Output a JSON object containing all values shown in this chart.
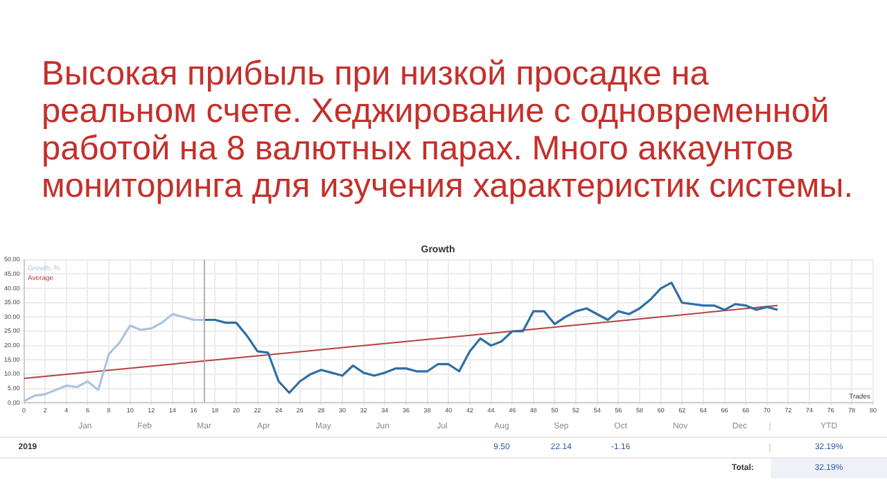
{
  "chart_data": [
    {
      "type": "line",
      "title": "Высокая прибыль при низкой просадке на реальном счете. Хеджирование с одновременной работой на 8 валютных парах. Много аккаунтов мониторинга для изучения характеристик системы.",
      "subtitle": "Growth",
      "xlabel": "Trades",
      "series": [
        {
          "name": "Growth, %",
          "color": "#a9c4e0",
          "x": [
            0,
            1,
            2,
            3,
            4,
            5,
            6,
            7,
            8,
            9,
            10,
            11,
            12,
            13,
            14,
            15,
            16,
            17
          ],
          "values": [
            0.5,
            2.5,
            3,
            4.5,
            6,
            5.5,
            7.5,
            4.5,
            17,
            21,
            27,
            25.5,
            26,
            28,
            31,
            30,
            29,
            29
          ]
        },
        {
          "color": "#2e6ea6",
          "x": [
            17,
            18,
            19,
            20,
            21,
            22,
            23,
            24,
            25,
            26,
            27,
            28,
            29,
            30,
            31,
            32,
            33,
            34,
            35,
            36,
            37,
            38,
            39,
            40,
            41,
            42,
            43,
            44,
            45,
            46,
            47,
            48,
            49,
            50,
            51,
            52,
            53,
            54,
            55,
            56,
            57,
            58,
            59,
            60,
            61,
            62,
            63,
            64,
            65,
            66,
            67,
            68,
            69,
            70,
            71
          ],
          "values": [
            29,
            29,
            28,
            28,
            23.5,
            18,
            17.5,
            7.5,
            3.5,
            7.5,
            10,
            11.5,
            10.5,
            9.5,
            13,
            10.5,
            9.5,
            10.5,
            12,
            12,
            11,
            11,
            13.5,
            13.5,
            11,
            18,
            22.5,
            20,
            21.5,
            25,
            25,
            32,
            32,
            27.5,
            30,
            32,
            33,
            31,
            29,
            32,
            31,
            33,
            36,
            40,
            42,
            35,
            34.5,
            34,
            34,
            32.5,
            34.5,
            34,
            32.5,
            33.5,
            32.5
          ]
        },
        {
          "name": "Average",
          "color": "#b5403e",
          "x": [
            0,
            71
          ],
          "values": [
            8.5,
            34
          ]
        }
      ],
      "xlim": [
        0,
        80
      ],
      "xticks": [
        0,
        2,
        4,
        6,
        8,
        10,
        12,
        14,
        16,
        18,
        20,
        22,
        24,
        26,
        28,
        30,
        32,
        34,
        36,
        38,
        40,
        42,
        44,
        46,
        48,
        50,
        52,
        54,
        56,
        58,
        60,
        62,
        64,
        66,
        68,
        70,
        72,
        74,
        76,
        78,
        80
      ],
      "ylim": [
        0,
        50
      ],
      "yticks": [
        {
          "value": 0,
          "label": "0.00"
        },
        {
          "value": 5,
          "label": "5.00"
        },
        {
          "value": 10,
          "label": "10.00"
        },
        {
          "value": 15,
          "label": "15.00"
        },
        {
          "value": 20,
          "label": "20.00"
        },
        {
          "value": 25,
          "label": "25.00"
        },
        {
          "value": 30,
          "label": "30.00"
        },
        {
          "value": 35,
          "label": "35.00"
        },
        {
          "value": 40,
          "label": "40.00"
        },
        {
          "value": 45,
          "label": "45.00"
        },
        {
          "value": 50,
          "label": "50.00"
        }
      ],
      "ref_lines": [
        {
          "axis": "x",
          "value": 17,
          "color": "#b0b0b0"
        }
      ],
      "grid": true,
      "legend": "top left",
      "marker": "none",
      "line_style": "solid"
    },
    {
      "type": "other",
      "ylabel": "2019",
      "categories": [
        "Jan",
        "Feb",
        "Mar",
        "Apr",
        "May",
        "Jun",
        "Jul",
        "Aug",
        "Sep",
        "Oct",
        "Nov",
        "Dec",
        "YTD"
      ],
      "value_labels": [
        null,
        null,
        null,
        null,
        null,
        null,
        null,
        "9.50",
        "22.14",
        "-1.16",
        null,
        null,
        "32.19%"
      ],
      "annotations": [
        "Total:",
        "32.19%"
      ]
    }
  ]
}
